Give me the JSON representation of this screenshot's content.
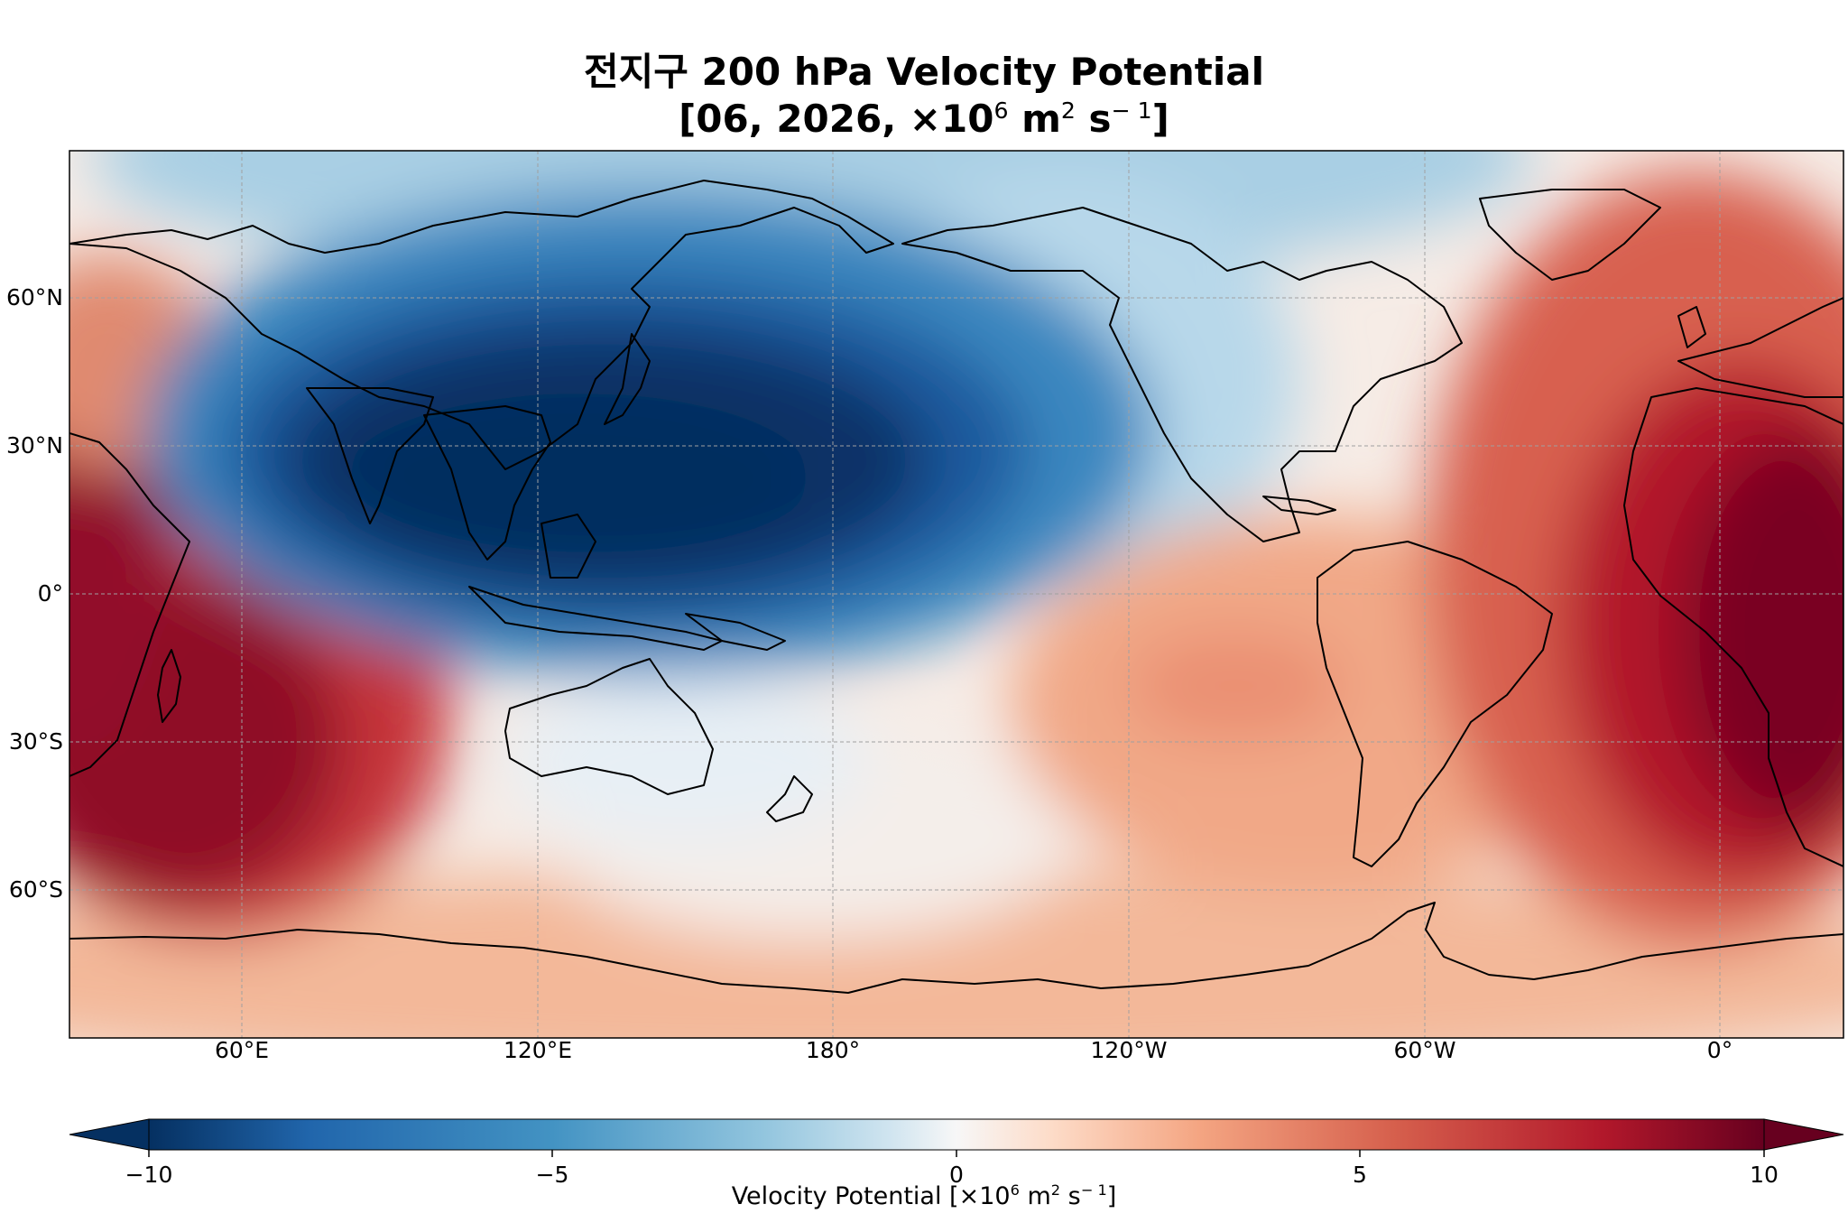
{
  "title": {
    "line1": "전지구 200 hPa Velocity Potential",
    "line2_prefix": "[06, 2026, ×10",
    "line2_exp": "6",
    "line2_unit": " m",
    "line2_unit_exp": "2",
    "line2_suffix": " s",
    "line2_suffix_exp": "− 1",
    "line2_end": "]"
  },
  "axes": {
    "lat_labels": [
      "60°N",
      "30°N",
      "0°",
      "30°S",
      "60°S"
    ],
    "lon_labels": [
      "60°E",
      "120°E",
      "180°",
      "120°W",
      "60°W",
      "0°"
    ]
  },
  "colorbar": {
    "ticks": [
      "−10",
      "−5",
      "0",
      "5",
      "10"
    ],
    "label_prefix": "Velocity Potential [×10",
    "label_exp": "6",
    "label_unit": " m",
    "label_unit_exp": "2",
    "label_suffix": " s",
    "label_suffix_exp": "− 1",
    "label_end": "]"
  },
  "chart_data": {
    "type": "heatmap",
    "variable": "200 hPa Velocity Potential",
    "units": "×10^6 m^2 s^-1",
    "colormap": "RdBu_r",
    "vmin": -10,
    "vmax": 10,
    "levels_step": 0.667,
    "extend": "both",
    "lon_range": [
      25,
      385
    ],
    "lat_range": [
      -90,
      90
    ],
    "features": [
      {
        "name": "west-pacific-minimum",
        "lon": 145,
        "lat": 15,
        "value": -10
      },
      {
        "name": "africa-atlantic-maximum",
        "lon": 15,
        "lat": -5,
        "value": 10
      },
      {
        "name": "south-indian-maximum",
        "lon": 40,
        "lat": -40,
        "value": 10
      },
      {
        "name": "south-pacific-secondary-max",
        "lon": 240,
        "lat": -20,
        "value": 3
      }
    ]
  },
  "colors": {
    "low": "#053061",
    "mid": "#f7f7f7",
    "high": "#67001f"
  }
}
